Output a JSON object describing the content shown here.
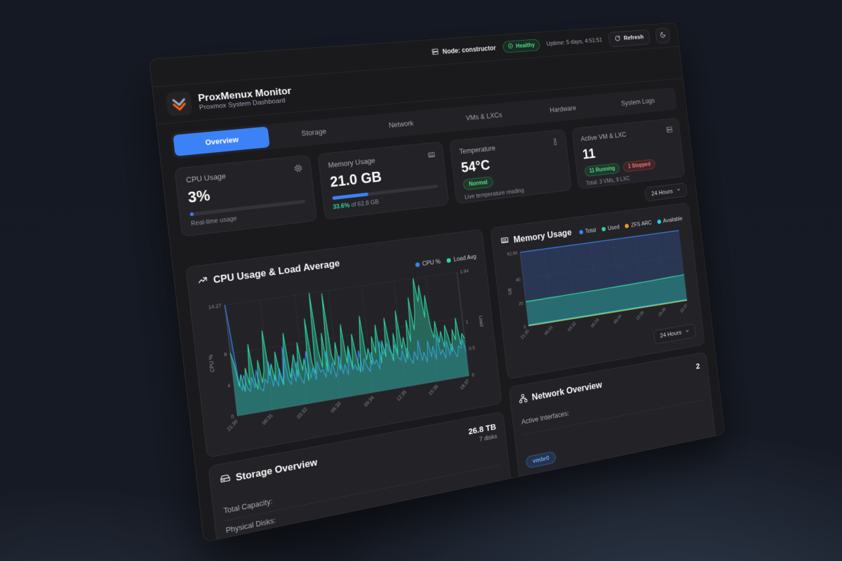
{
  "topbar": {
    "node_label": "Node: constructor",
    "health_label": "Healthy",
    "uptime": "Uptime: 5 days, 4:51:51",
    "refresh_label": "Refresh"
  },
  "header": {
    "title": "ProxMenux Monitor",
    "subtitle": "Proxmox System Dashboard"
  },
  "tabs": [
    {
      "label": "Overview",
      "active": true
    },
    {
      "label": "Storage",
      "active": false
    },
    {
      "label": "Network",
      "active": false
    },
    {
      "label": "VMs & LXCs",
      "active": false
    },
    {
      "label": "Hardware",
      "active": false
    },
    {
      "label": "System Logs",
      "active": false
    }
  ],
  "stats": {
    "cpu": {
      "label": "CPU Usage",
      "value": "3%",
      "sub": "Real-time usage",
      "progress_pct": 3
    },
    "memory": {
      "label": "Memory Usage",
      "value": "21.0 GB",
      "pct": "33.6%",
      "of": " of 62.8 GB",
      "progress_pct": 33.6
    },
    "temperature": {
      "label": "Temperature",
      "value": "54°C",
      "badge": "Normal",
      "sub": "Live temperature reading"
    },
    "vms": {
      "label": "Active VM & LXC",
      "value": "11",
      "running": "11 Running",
      "stopped": "1 Stopped",
      "sub": "Total: 3 VMs, 9 LXC"
    }
  },
  "time_ranges": {
    "top": "24 Hours",
    "memory": "24 Hours"
  },
  "storage": {
    "title": "Storage Overview",
    "capacity": "26.8 TB",
    "disks": "7 disks",
    "row1": "Total Capacity:",
    "row2": "Physical Disks:"
  },
  "network": {
    "title": "Network Overview",
    "count": "2",
    "row1": "Active Interfaces:",
    "badge": "vmbr0"
  },
  "colors": {
    "accent_blue": "#3b82f6",
    "green": "#34d399",
    "teal_load": "#2fd6a7",
    "orange": "#f59e0b",
    "cyan": "#22d3ee",
    "healthy_green": "#4ade80",
    "stopped_red": "#f87171"
  },
  "chart_data": [
    {
      "type": "area",
      "title": "CPU Usage & Load Average",
      "x": [
        "21:30",
        "00:31",
        "03:32",
        "06:33",
        "09:34",
        "12:35",
        "15:36",
        "18:37"
      ],
      "ylabel_left": "CPU %",
      "ylabel_right": "Load",
      "yticks_left": [
        0,
        4,
        8,
        14.27
      ],
      "yticks_right": [
        0,
        0.5,
        1,
        1.94
      ],
      "ylim_left": [
        0,
        14.27
      ],
      "ylim_right": [
        0,
        1.94
      ],
      "grid": true,
      "legend_position": "top-right",
      "series": [
        {
          "name": "CPU %",
          "axis": "left",
          "color": "#3b82f6",
          "fill": "rgba(59,130,246,0.16)",
          "values": [
            14.3,
            9.5,
            4.2,
            3.1,
            5.0,
            3.4,
            2.8,
            4.6,
            3.2,
            5.4,
            3.0,
            2.6,
            4.1,
            3.5,
            6.2,
            3.0,
            4.4,
            2.9,
            5.1,
            3.3,
            7.8,
            3.6,
            2.8,
            4.9,
            3.1,
            5.6,
            3.4,
            2.7,
            4.2,
            6.8,
            3.2,
            4.5,
            2.9,
            5.2,
            3.8,
            4.1,
            3.0,
            6.4,
            3.3,
            4.8,
            2.8,
            3.9,
            5.5,
            3.1,
            4.3,
            2.9,
            6.1,
            3.4,
            4.0,
            3.2,
            5.8,
            3.0,
            4.6,
            3.5,
            2.8,
            5.3,
            3.7,
            4.2,
            2.9,
            6.6,
            4.8,
            5.4,
            6.2,
            5.0,
            4.4,
            5.8,
            4.1,
            3.6,
            4.9,
            3.2,
            5.1,
            3.8,
            2.9,
            4.5,
            3.3,
            5.9,
            3.1,
            4.2,
            2.8,
            5.6,
            3.4,
            4.8,
            3.0,
            6.3,
            3.5,
            4.1,
            2.9,
            5.2,
            3.2,
            4.7,
            3.6,
            2.8,
            4.3,
            3.9,
            5.0,
            3.3
          ]
        },
        {
          "name": "Load Avg",
          "axis": "right",
          "color": "#2fd6a7",
          "fill": "rgba(47,214,167,0.38)",
          "values": [
            1.1,
            0.9,
            0.5,
            0.7,
            0.4,
            0.8,
            0.5,
            1.2,
            0.6,
            0.4,
            0.9,
            0.5,
            0.7,
            1.4,
            0.6,
            0.8,
            0.5,
            1.0,
            0.6,
            0.4,
            0.8,
            1.3,
            0.5,
            0.7,
            0.9,
            0.5,
            1.1,
            0.6,
            0.8,
            0.4,
            1.5,
            0.7,
            0.5,
            1.94,
            0.9,
            0.6,
            1.2,
            0.5,
            1.9,
            0.8,
            0.6,
            1.0,
            0.5,
            0.8,
            1.3,
            0.6,
            0.9,
            0.5,
            1.1,
            0.7,
            0.4,
            0.9,
            1.4,
            0.6,
            0.8,
            0.5,
            1.0,
            0.7,
            1.2,
            0.5,
            0.9,
            0.6,
            1.3,
            0.8,
            0.5,
            1.0,
            0.6,
            1.4,
            0.7,
            0.9,
            0.5,
            1.2,
            0.8,
            1.6,
            1.0,
            1.3,
            1.94,
            1.5,
            1.8,
            1.2,
            1.6,
            1.0,
            0.8,
            1.1,
            0.7,
            0.9,
            0.6,
            1.0,
            0.8,
            0.5,
            0.9,
            0.7,
            1.1,
            0.6,
            0.8,
            0.7
          ]
        }
      ]
    },
    {
      "type": "area",
      "title": "Memory Usage",
      "x": [
        "21:30",
        "00:31",
        "03:32",
        "06:33",
        "09:34",
        "12:35",
        "15:36",
        "18:37"
      ],
      "ylabel": "GB",
      "yticks": [
        0,
        20,
        40,
        62.56
      ],
      "ylim": [
        0,
        62.56
      ],
      "grid": true,
      "legend_position": "top-right",
      "series": [
        {
          "name": "Total",
          "color": "#3b82f6",
          "fill": "rgba(49,84,150,0.42)",
          "values": [
            62.56,
            62.56
          ]
        },
        {
          "name": "Used",
          "color": "#34d399",
          "fill": "rgba(40,160,140,0.50)",
          "values": [
            20.8,
            20.9,
            20.9,
            21.0,
            21.0,
            21.1,
            21.2,
            21.2,
            21.3,
            21.4,
            21.4,
            21.5,
            21.6,
            21.7,
            21.8,
            21.9,
            22.0,
            22.2,
            22.3,
            22.5,
            22.7,
            22.9,
            23.0,
            23.2
          ]
        },
        {
          "name": "ZFS ARC",
          "color": "#f59e0b",
          "fill": "none",
          "values": [
            0.5,
            0.5
          ]
        },
        {
          "name": "Available",
          "color": "#22d3ee",
          "fill": "rgba(34,211,238,0.12)",
          "values": [
            1.1,
            1.1
          ]
        }
      ]
    }
  ]
}
